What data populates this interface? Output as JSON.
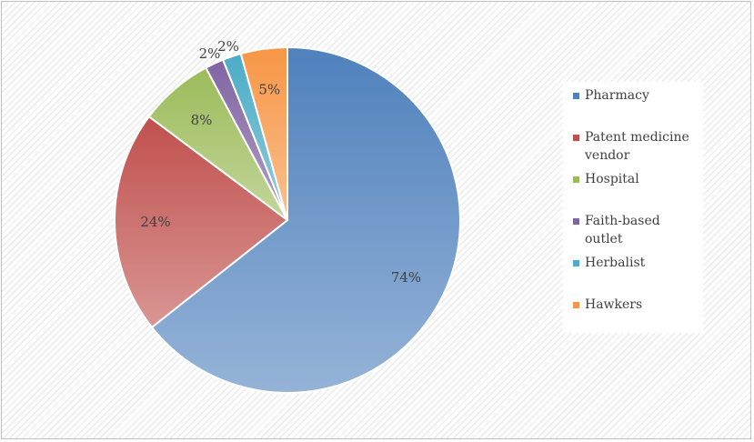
{
  "chart_data": {
    "type": "pie",
    "start_angle_deg": 0,
    "direction": "clockwise",
    "legend_position": "right",
    "slices": [
      {
        "label": "Pharmacy",
        "value": 74,
        "display": "74%",
        "color": "#4f81bd",
        "light": "#95b3d7"
      },
      {
        "label": "Patent medicine vendor",
        "value": 24,
        "display": "24%",
        "color": "#c0504d",
        "light": "#d99694"
      },
      {
        "label": "Hospital",
        "value": 8,
        "display": "8%",
        "color": "#9bbb59",
        "light": "#c3d69b"
      },
      {
        "label": "Faith-based outlet",
        "value": 2,
        "display": "2%",
        "color": "#8064a2",
        "light": "#b2a1c7"
      },
      {
        "label": "Herbalist",
        "value": 2,
        "display": "2%",
        "color": "#4bacc6",
        "light": "#92cddc"
      },
      {
        "label": "Hawkers",
        "value": 5,
        "display": "5%",
        "color": "#f79646",
        "light": "#fac090"
      }
    ]
  }
}
